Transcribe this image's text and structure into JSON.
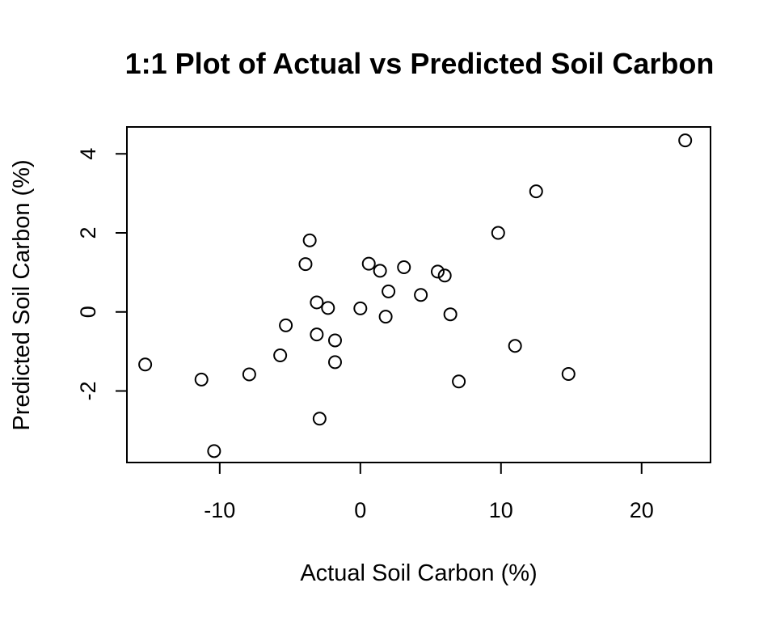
{
  "chart_data": {
    "type": "scatter",
    "title": "1:1 Plot of Actual vs Predicted Soil Carbon",
    "xlabel": "Actual Soil Carbon (%)",
    "ylabel": "Predicted Soil Carbon (%)",
    "xlim": [
      -16.6,
      24.9
    ],
    "ylim": [
      -3.81,
      4.68
    ],
    "xticks": [
      -10,
      0,
      10,
      20
    ],
    "xtick_labels": [
      "-10",
      "0",
      "10",
      "20"
    ],
    "yticks": [
      -2,
      0,
      2,
      4
    ],
    "ytick_labels": [
      "-2",
      "0",
      "2",
      "4"
    ],
    "grid": false,
    "series": [
      {
        "points": [
          {
            "x": -15.3,
            "y": -1.33
          },
          {
            "x": -11.3,
            "y": -1.71
          },
          {
            "x": -10.4,
            "y": -3.52
          },
          {
            "x": -7.9,
            "y": -1.58
          },
          {
            "x": -5.7,
            "y": -1.1
          },
          {
            "x": -5.3,
            "y": -0.34
          },
          {
            "x": -3.9,
            "y": 1.21
          },
          {
            "x": -3.6,
            "y": 1.81
          },
          {
            "x": -3.1,
            "y": 0.24
          },
          {
            "x": -3.1,
            "y": -0.57
          },
          {
            "x": -2.9,
            "y": -2.7
          },
          {
            "x": -2.3,
            "y": 0.1
          },
          {
            "x": -1.8,
            "y": -0.72
          },
          {
            "x": -1.8,
            "y": -1.27
          },
          {
            "x": 0.0,
            "y": 0.09
          },
          {
            "x": 0.6,
            "y": 1.22
          },
          {
            "x": 1.4,
            "y": 1.04
          },
          {
            "x": 1.8,
            "y": -0.12
          },
          {
            "x": 2.0,
            "y": 0.52
          },
          {
            "x": 3.1,
            "y": 1.13
          },
          {
            "x": 4.3,
            "y": 0.43
          },
          {
            "x": 5.5,
            "y": 1.02
          },
          {
            "x": 6.0,
            "y": 0.92
          },
          {
            "x": 6.4,
            "y": -0.06
          },
          {
            "x": 7.0,
            "y": -1.76
          },
          {
            "x": 9.8,
            "y": 2.0
          },
          {
            "x": 11.0,
            "y": -0.86
          },
          {
            "x": 12.5,
            "y": 3.05
          },
          {
            "x": 14.8,
            "y": -1.57
          },
          {
            "x": 23.1,
            "y": 4.34
          }
        ]
      }
    ]
  }
}
